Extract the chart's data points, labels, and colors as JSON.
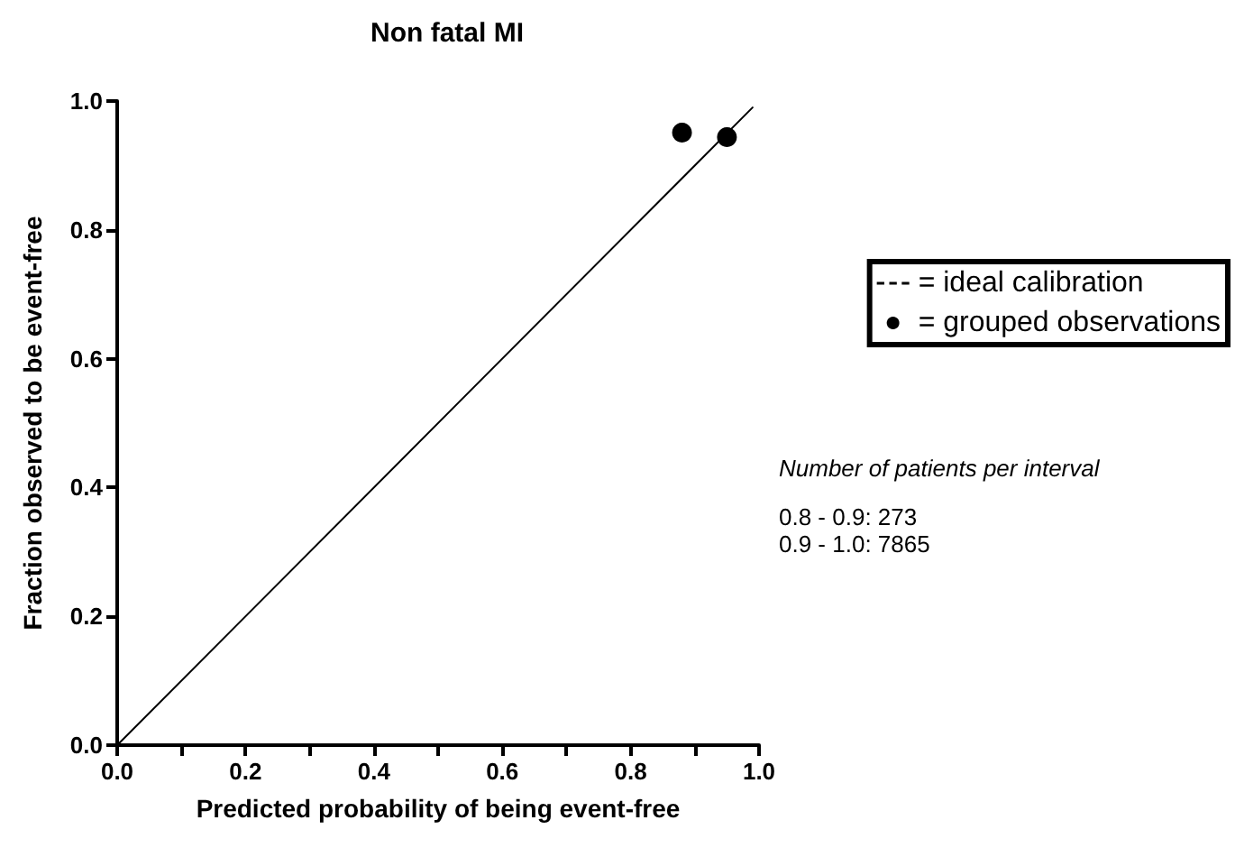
{
  "chart_data": {
    "type": "scatter",
    "title": "Non fatal MI",
    "xlabel": "Predicted probability of being event-free",
    "ylabel": "Fraction observed to be event-free",
    "series": [
      {
        "name": "= ideal calibration",
        "type": "line",
        "color": "#000000",
        "x": [
          0,
          0.99
        ],
        "values": [
          0,
          0.99
        ],
        "marker": "none",
        "line_style": "solid"
      },
      {
        "name": "= grouped observations",
        "color": "#000000",
        "x": [
          0.88,
          0.95
        ],
        "values": [
          0.951,
          0.944
        ],
        "marker": "circle"
      }
    ],
    "xlim": [
      0,
      1
    ],
    "ylim": [
      0,
      1
    ],
    "xticks": [
      {
        "value": 0,
        "label": "0.0"
      },
      {
        "value": 0.1,
        "label": null
      },
      {
        "value": 0.2,
        "label": "0.2"
      },
      {
        "value": 0.3,
        "label": null
      },
      {
        "value": 0.4,
        "label": "0.4"
      },
      {
        "value": 0.5,
        "label": null
      },
      {
        "value": 0.6,
        "label": "0.6"
      },
      {
        "value": 0.7,
        "label": null
      },
      {
        "value": 0.8,
        "label": "0.8"
      },
      {
        "value": 0.9,
        "label": null
      },
      {
        "value": 1,
        "label": "1.0"
      }
    ],
    "yticks": [
      {
        "value": 0,
        "label": "0.0"
      },
      {
        "value": 0.2,
        "label": "0.2"
      },
      {
        "value": 0.4,
        "label": "0.4"
      },
      {
        "value": 0.6,
        "label": "0.6"
      },
      {
        "value": 0.8,
        "label": "0.8"
      },
      {
        "value": 1,
        "label": "1.0"
      }
    ],
    "grid": false,
    "legend": "right",
    "annotations": [
      "Number of patients per interval",
      "0.8 - 0.9: 273",
      "0.9 - 1.0: 7865"
    ]
  }
}
